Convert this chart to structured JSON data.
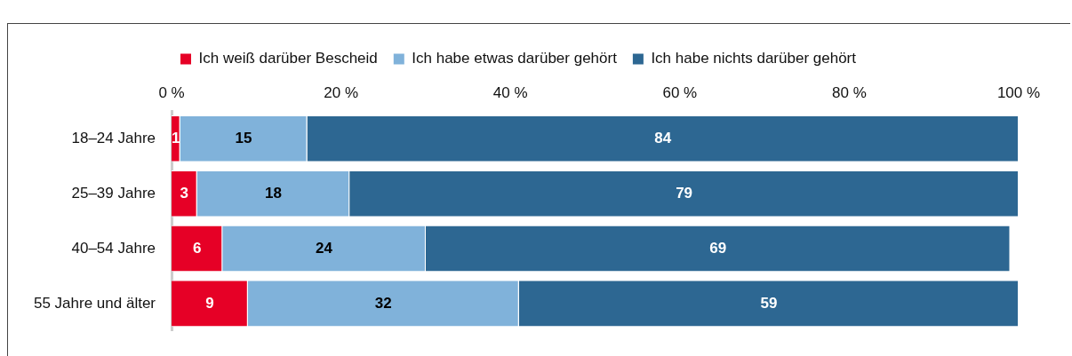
{
  "chart_data": {
    "type": "bar",
    "orientation": "horizontal",
    "stacked": true,
    "categories": [
      "18–24 Jahre",
      "25–39 Jahre",
      "40–54 Jahre",
      "55 Jahre und älter"
    ],
    "series": [
      {
        "name": "Ich weiß darüber Bescheid",
        "color": "#e60026",
        "values": [
          1,
          3,
          6,
          9
        ]
      },
      {
        "name": "Ich habe etwas darüber gehört",
        "color": "#80b2da",
        "values": [
          15,
          18,
          24,
          32
        ]
      },
      {
        "name": "Ich habe nichts darüber gehört",
        "color": "#2d6792",
        "values": [
          84,
          79,
          69,
          59
        ]
      }
    ],
    "xlim": [
      0,
      100
    ],
    "xticks": [
      {
        "value": 0,
        "label": "0 %"
      },
      {
        "value": 20,
        "label": "20 %"
      },
      {
        "value": 40,
        "label": "40 %"
      },
      {
        "value": 60,
        "label": "60 %"
      },
      {
        "value": 80,
        "label": "80 %"
      },
      {
        "value": 100,
        "label": "100 %"
      }
    ],
    "grid": false,
    "legend": "top",
    "data_labels": true
  }
}
